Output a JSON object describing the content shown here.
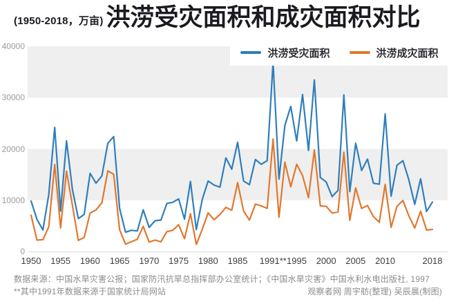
{
  "header": {
    "range_unit_prefix": "(1950-2018，万亩)",
    "title": "洪涝受灾面积和成灾面积对比"
  },
  "footer": {
    "source_line": "数据来源：中国水旱灾害公报；国家防汛抗旱总指挥部办公室统计；《中国水旱灾害》中国水利水电出版社, 1997",
    "note_line": "**其中1991年数据来源于国家统计局网站",
    "credit": "观察者网 周宇舫(整理) 吴辰晨(制图)"
  },
  "chart_data": {
    "type": "line",
    "title": "洪涝受灾面积和成灾面积对比",
    "unit": "万亩",
    "x_axis": {
      "start": 1950,
      "end": 2018,
      "ticks": [
        {
          "year": 1950,
          "label": "1950"
        },
        {
          "year": 1955,
          "label": "1955"
        },
        {
          "year": 1960,
          "label": "1960"
        },
        {
          "year": 1965,
          "label": "1965"
        },
        {
          "year": 1970,
          "label": "1970"
        },
        {
          "year": 1975,
          "label": "1975"
        },
        {
          "year": 1980,
          "label": "1980"
        },
        {
          "year": 1985,
          "label": "1985"
        },
        {
          "year": 1991,
          "label": "1991**"
        },
        {
          "year": 1995,
          "label": "1995"
        },
        {
          "year": 2000,
          "label": "2000"
        },
        {
          "year": 2005,
          "label": "2005"
        },
        {
          "year": 2010,
          "label": "2010"
        },
        {
          "year": 2018,
          "label": "2018"
        }
      ]
    },
    "y_axis": {
      "min": 0,
      "max": 40000,
      "ticks": [
        0,
        10000,
        20000,
        30000,
        40000
      ]
    },
    "bands": [
      [
        10000,
        20000
      ],
      [
        30000,
        40000
      ]
    ],
    "colors": {
      "band": "#efefef",
      "axis_line": "#d9d9d9",
      "x_tick_text": "#3d3d3d",
      "y_tick_text": "#9c9c9c"
    },
    "years": [
      1950,
      1951,
      1952,
      1953,
      1954,
      1955,
      1956,
      1957,
      1958,
      1959,
      1960,
      1961,
      1962,
      1963,
      1964,
      1965,
      1966,
      1967,
      1968,
      1969,
      1970,
      1971,
      1972,
      1973,
      1974,
      1975,
      1976,
      1977,
      1978,
      1979,
      1980,
      1981,
      1982,
      1983,
      1984,
      1985,
      1986,
      1987,
      1988,
      1989,
      1990,
      1991,
      1992,
      1993,
      1994,
      1995,
      1996,
      1997,
      1998,
      1999,
      2000,
      2001,
      2002,
      2003,
      2004,
      2005,
      2006,
      2007,
      2008,
      2009,
      2010,
      2011,
      2012,
      2013,
      2014,
      2015,
      2016,
      2017,
      2018
    ],
    "series": [
      {
        "id": "affected-area",
        "name": "洪涝受灾面积",
        "color": "#2e7ebc",
        "values": [
          9839,
          6260,
          4191,
          11115,
          24197,
          7875,
          21566,
          12125,
          6419,
          7220,
          15233,
          13316,
          14715,
          21107,
          22400,
          8381,
          3762,
          4128,
          4005,
          8117,
          4695,
          5988,
          6125,
          9353,
          9603,
          10241,
          6302,
          13650,
          4275,
          10140,
          13733,
          12938,
          12533,
          18243,
          16040,
          21296,
          13734,
          13029,
          17924,
          16992,
          17706,
          36894,
          14114,
          24581,
          28289,
          21550,
          30582,
          19703,
          33438,
          14408,
          13568,
          10707,
          11900,
          30513,
          11673,
          21094,
          15783,
          18000,
          13301,
          13122,
          26800,
          10788,
          16827,
          17697,
          14003,
          9198,
          14165,
          7793,
          9639
        ]
      },
      {
        "id": "damaged-area",
        "name": "洪涝成灾面积",
        "color": "#e2772d",
        "values": [
          7065,
          2217,
          2309,
          4803,
          16965,
          4601,
          15657,
          9048,
          2162,
          2732,
          7494,
          8109,
          9491,
          15719,
          15057,
          4218,
          1425,
          1900,
          2400,
          4908,
          1851,
          2222,
          1901,
          3866,
          4137,
          5208,
          2486,
          7364,
          1386,
          4305,
          7545,
          6200,
          7200,
          8606,
          8042,
          13424,
          7900,
          6114,
          9242,
          8894,
          8408,
          21921,
          6674,
          17400,
          12600,
          17000,
          14800,
          10500,
          19800,
          8900,
          8800,
          7500,
          7695,
          19372,
          6075,
          12385,
          8388,
          8954,
          6806,
          5693,
          13092,
          4706,
          8807,
          9935,
          6963,
          4581,
          7856,
          4170,
          4305
        ]
      }
    ]
  }
}
